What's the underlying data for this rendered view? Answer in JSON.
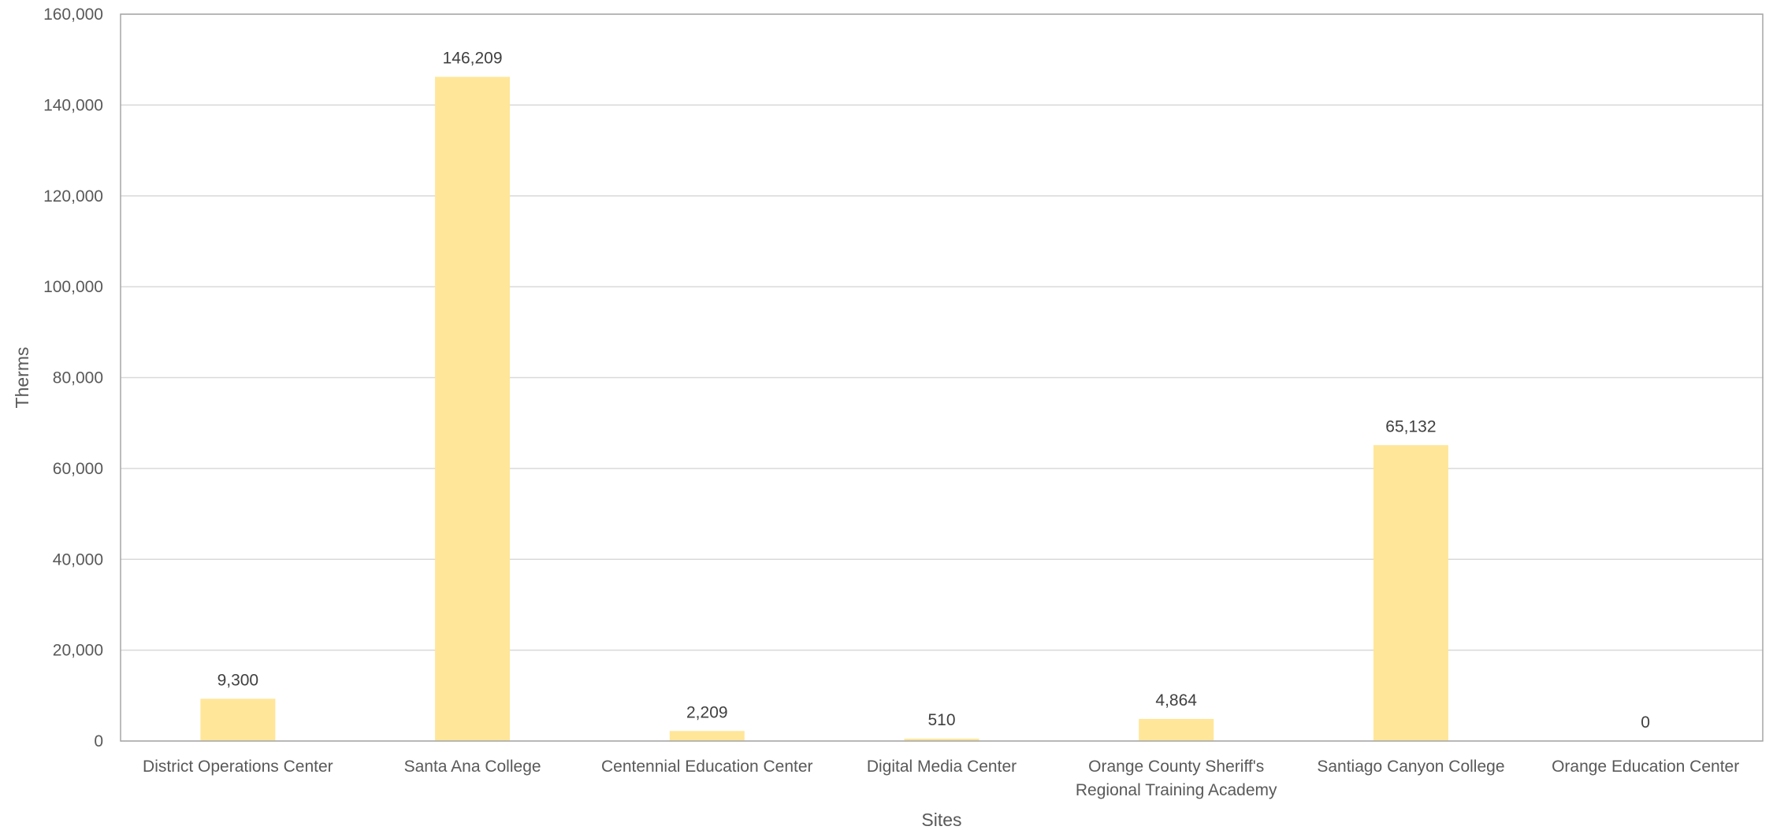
{
  "chart_data": {
    "type": "bar",
    "title": "",
    "xlabel": "Sites",
    "ylabel": "Therms",
    "ylim": [
      0,
      160000
    ],
    "yticks": [
      "0",
      "20,000",
      "40,000",
      "60,000",
      "80,000",
      "100,000",
      "120,000",
      "140,000",
      "160,000"
    ],
    "grid": true,
    "legend": "none",
    "categories": [
      [
        "District Operations Center"
      ],
      [
        "Santa Ana College"
      ],
      [
        "Centennial Education Center"
      ],
      [
        "Digital Media Center"
      ],
      [
        "Orange County Sheriff's",
        "Regional Training Academy"
      ],
      [
        "Santiago Canyon College"
      ],
      [
        "Orange Education Center"
      ]
    ],
    "values": [
      9300,
      146209,
      2209,
      510,
      4864,
      65132,
      0
    ],
    "data_labels": [
      "9,300",
      "146,209",
      "2,209",
      "510",
      "4,864",
      "65,132",
      "0"
    ],
    "bar_color": "#FFE699",
    "gridline_color": "#D9D9D9",
    "axis_color": "#A6A6A6"
  }
}
